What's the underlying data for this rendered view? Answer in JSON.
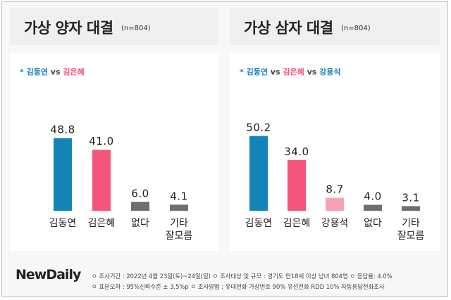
{
  "colors": {
    "blue": "#1284b5",
    "pink": "#f5557a",
    "light_pink": "#f7a2b4",
    "grey": "#6e6e6e"
  },
  "footer": {
    "logo_new": "New",
    "logo_daily": "Daily",
    "note1": "ㅇ 조사기간 : 2022년 4월 23일(토)~24일(일)   ㅇ 조사대상 및 규모 : 경기도 만18세 이상 남녀 804명   ㅇ 응답율: 4.0%",
    "note2": "ㅇ 표본오차 : 95%신뢰수준 ± 3.5%p   ㅇ 조사방법 : 유대전화 가상번호 90%  유선전화 RDD 10%  자동응답전화조사"
  },
  "chart_data": [
    {
      "type": "bar",
      "title": "가상 양자 대결",
      "sample": "(n=804)",
      "subtitle": {
        "star": "* ",
        "a": "김동연",
        "vs1": " vs ",
        "b": "김은혜"
      },
      "categories": [
        "김동연",
        "김은혜",
        "없다",
        "기타\n잘모름"
      ],
      "values": [
        48.8,
        41.0,
        6.0,
        4.1
      ],
      "value_labels": [
        "48.8",
        "41.0",
        "6.0",
        "4.1"
      ],
      "colors": [
        "#1284b5",
        "#f5557a",
        "#6e6e6e",
        "#6e6e6e"
      ],
      "ylim": [
        0,
        55
      ]
    },
    {
      "type": "bar",
      "title": "가상 삼자 대결",
      "sample": "(n=804)",
      "subtitle": {
        "star": "* ",
        "a": "김동연",
        "vs1": " vs ",
        "b": "김은혜",
        "vs2": " vs ",
        "c": "강용석"
      },
      "categories": [
        "김동연",
        "김은혜",
        "강용석",
        "없다",
        "기타\n잘모름"
      ],
      "values": [
        50.2,
        34.0,
        8.7,
        4.0,
        3.1
      ],
      "value_labels": [
        "50.2",
        "34.0",
        "8.7",
        "4.0",
        "3.1"
      ],
      "colors": [
        "#1284b5",
        "#f5557a",
        "#f7a2b4",
        "#6e6e6e",
        "#6e6e6e"
      ],
      "ylim": [
        0,
        55
      ]
    }
  ]
}
